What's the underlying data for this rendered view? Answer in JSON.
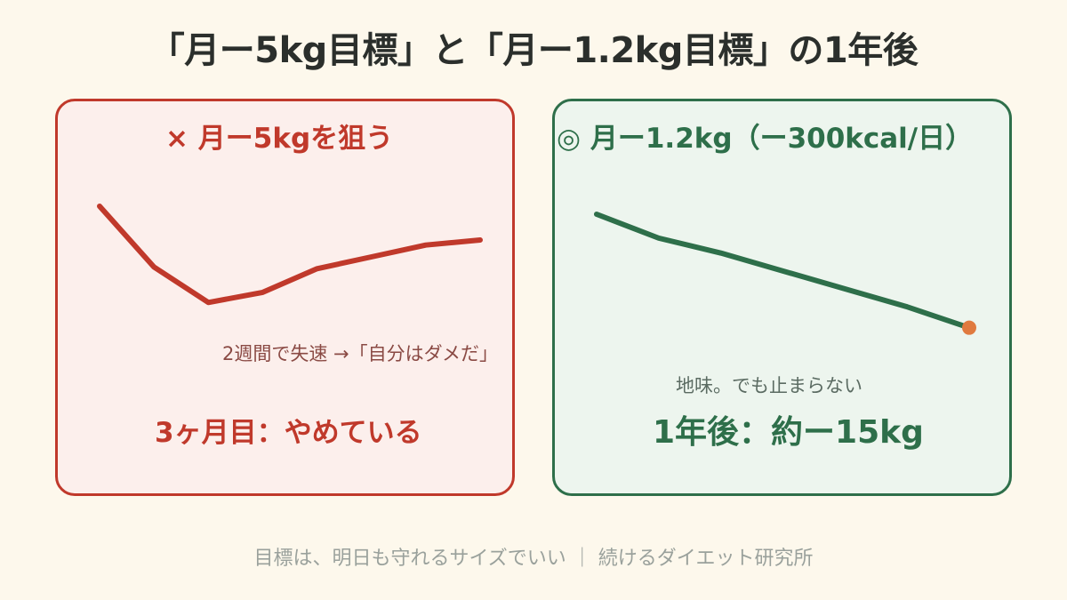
{
  "title": "「月ー5kg目標」と「月ー1.2kg目標」の1年後",
  "left_panel": {
    "heading": "× 月ー5kgを狙う",
    "note": "2週間で失速 →「自分はダメだ」",
    "result": "3ヶ月目：やめている",
    "accent_color": "#c0392b",
    "background_color": "#fcefec"
  },
  "right_panel": {
    "heading": "◎ 月ー1.2kg（ー300kcal/日）",
    "note": "地味。でも止まらない",
    "result": "1年後：約ー15kg",
    "accent_color": "#2e6f4a",
    "background_color": "#edf5ee",
    "endpoint_color": "#e07a3f"
  },
  "footer": "目標は、明日も守れるサイズでいい ｜ 続けるダイエット研究所",
  "chart_data": [
    {
      "type": "line",
      "series": [
        {
          "values": [
            0,
            -3.6,
            -5.7,
            -5.1,
            -3.7,
            -3.0,
            -2.3,
            -2.0
          ]
        }
      ]
    },
    {
      "type": "line",
      "series": [
        {
          "values": [
            0,
            -1.6,
            -2.6,
            -3.8,
            -5.0,
            -6.2,
            -7.6
          ]
        }
      ]
    }
  ]
}
